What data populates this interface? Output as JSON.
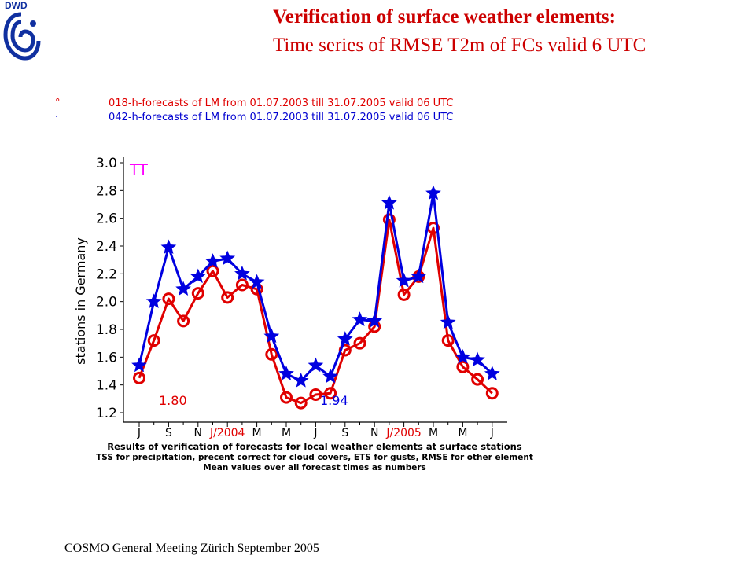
{
  "header": {
    "logo_text": "DWD",
    "title_line1": "Verification of surface weather elements:",
    "title_line2": "Time series of  RMSE T2m of FCs valid 6 UTC"
  },
  "legend": {
    "series1_marker": "°",
    "series1_label": "018-h-forecasts of LM from 01.07.2003 till 31.07.2005 valid 06 UTC",
    "series2_marker": "·",
    "series2_label": "042-h-forecasts of LM from 01.07.2003 till 31.07.2005 valid 06 UTC"
  },
  "footer": "COSMO General Meeting  Zürich September 2005",
  "chart_data": {
    "type": "line",
    "element_label": "TT",
    "ylabel": "stations in Germany",
    "ylim": [
      1.2,
      3.0
    ],
    "yticks": [
      "1.2",
      "1.4",
      "1.6",
      "1.8",
      "2.0",
      "2.2",
      "2.4",
      "2.6",
      "2.8",
      "3.0"
    ],
    "xticks": [
      {
        "label": "J",
        "month": 0,
        "color": "#000000"
      },
      {
        "label": "S",
        "month": 2,
        "color": "#000000"
      },
      {
        "label": "N",
        "month": 4,
        "color": "#000000"
      },
      {
        "label": "J/2004",
        "month": 6,
        "color": "#e00000"
      },
      {
        "label": "M",
        "month": 8,
        "color": "#000000"
      },
      {
        "label": "M",
        "month": 10,
        "color": "#000000"
      },
      {
        "label": "J",
        "month": 12,
        "color": "#000000"
      },
      {
        "label": "S",
        "month": 14,
        "color": "#000000"
      },
      {
        "label": "N",
        "month": 16,
        "color": "#000000"
      },
      {
        "label": "J/2005",
        "month": 18,
        "color": "#e00000"
      },
      {
        "label": "M",
        "month": 20,
        "color": "#000000"
      },
      {
        "label": "M",
        "month": 22,
        "color": "#000000"
      },
      {
        "label": "J",
        "month": 24,
        "color": "#000000"
      }
    ],
    "series": [
      {
        "name": "018-h-forecasts",
        "color": "#e00000",
        "marker": "circle",
        "mean_label": "1.80",
        "values": [
          1.45,
          1.72,
          2.02,
          1.86,
          2.06,
          2.22,
          2.03,
          2.12,
          2.09,
          1.62,
          1.31,
          1.27,
          1.33,
          1.34,
          1.65,
          1.7,
          1.82,
          2.59,
          2.05,
          2.18,
          2.53,
          1.72,
          1.53,
          1.44,
          1.34
        ]
      },
      {
        "name": "042-h-forecasts",
        "color": "#0000e0",
        "marker": "star",
        "mean_label": "1.94",
        "values": [
          1.54,
          2.0,
          2.39,
          2.09,
          2.18,
          2.29,
          2.31,
          2.2,
          2.14,
          1.75,
          1.48,
          1.43,
          1.54,
          1.46,
          1.73,
          1.87,
          1.86,
          2.71,
          2.15,
          2.18,
          2.78,
          1.85,
          1.6,
          1.58,
          1.48
        ]
      }
    ],
    "caption_lines": [
      "Results of verification of forecasts for local weather elements at surface stations",
      "TSS for precipitation, precent correct for cloud covers, ETS for gusts, RMSE for other element",
      "Mean values over all forecast times as numbers"
    ]
  }
}
